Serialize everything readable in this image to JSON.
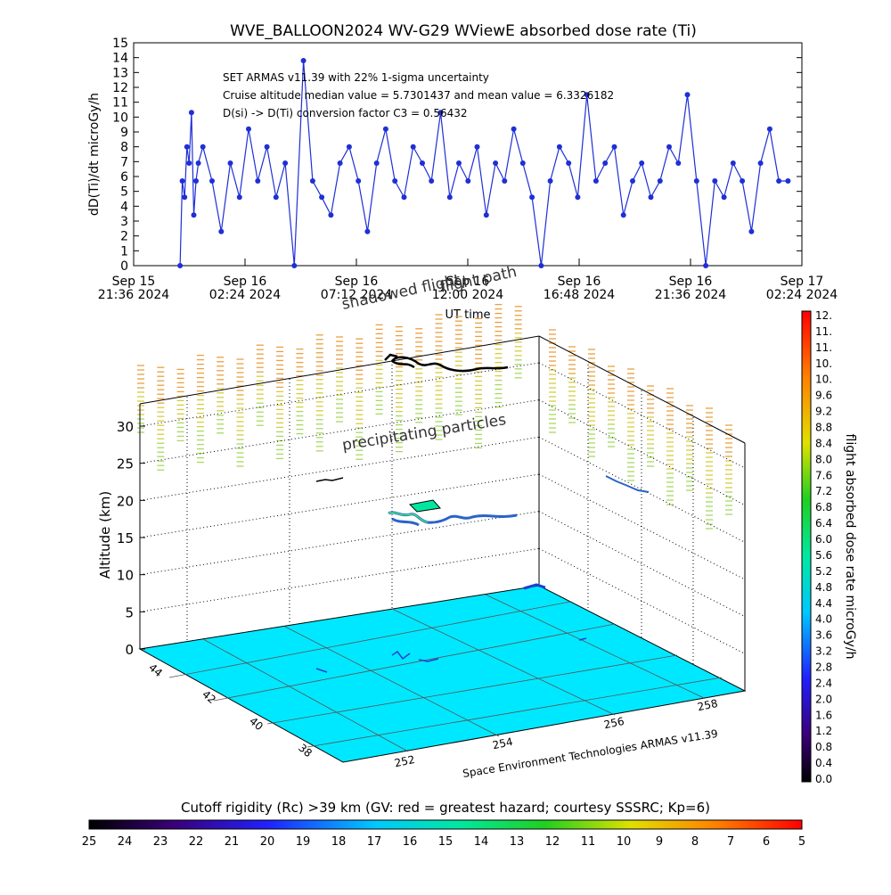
{
  "chart_data": [
    {
      "type": "line",
      "title": "WVE_BALLOON2024 WV-G29 WViewE absorbed dose rate (Ti)",
      "ylabel": "dD(Ti)/dt microGy/h",
      "xlabel": "UT time",
      "ylim": [
        0,
        15
      ],
      "y_ticks": [
        "0",
        "1",
        "2",
        "3",
        "4",
        "5",
        "6",
        "7",
        "8",
        "9",
        "10",
        "11",
        "12",
        "13",
        "14",
        "15"
      ],
      "x_ticks": [
        {
          "line1": "Sep 15",
          "line2": "21:36 2024"
        },
        {
          "line1": "Sep 16",
          "line2": "02:24 2024"
        },
        {
          "line1": "Sep 16",
          "line2": "07:12 2024"
        },
        {
          "line1": "Sep 16",
          "line2": "12:00 2024"
        },
        {
          "line1": "Sep 16",
          "line2": "16:48 2024"
        },
        {
          "line1": "Sep 16",
          "line2": "21:36 2024"
        },
        {
          "line1": "Sep 17",
          "line2": "02:24 2024"
        }
      ],
      "annotations": [
        "SET ARMAS v11.39 with 22% 1-sigma uncertainty",
        "Cruise altitude median value = 5.7301437 and mean value = 6.3326182",
        "D(si) -> D(Ti) conversion factor C3 = 0.56432"
      ],
      "overlay_labels": [
        "shadowed flight",
        "flight path"
      ],
      "series": [
        {
          "color": "#1f2fd6",
          "x_hours": [
            0,
            0.1,
            0.2,
            0.3,
            0.4,
            0.5,
            0.6,
            0.7,
            0.8,
            1.0,
            1.4,
            1.8,
            2.2,
            2.6,
            3.0,
            3.4,
            3.8,
            4.2,
            4.6,
            5.0,
            5.4,
            5.8,
            6.2,
            6.6,
            7.0,
            7.4,
            7.8,
            8.2,
            8.6,
            9.0,
            9.4,
            9.8,
            10.2,
            10.6,
            11.0,
            11.4,
            11.8,
            12.2,
            12.6,
            13.0,
            13.4,
            13.8,
            14.2,
            14.6,
            15.0,
            15.4,
            15.8,
            16.2,
            16.6,
            17.0,
            17.4,
            17.8,
            18.2,
            18.6,
            19.0,
            19.4,
            19.8,
            20.2,
            20.6,
            21.0,
            21.4,
            21.8,
            22.2,
            22.6,
            23.0,
            23.4,
            23.8,
            24.2,
            24.6,
            25.0,
            25.4,
            25.8,
            26.2,
            26.6
          ],
          "values": [
            0,
            5.7,
            4.6,
            8.0,
            6.9,
            10.3,
            3.4,
            5.7,
            6.9,
            8.0,
            5.7,
            2.3,
            6.9,
            4.6,
            9.2,
            5.7,
            8.0,
            4.6,
            6.9,
            0,
            13.8,
            5.7,
            4.6,
            3.4,
            6.9,
            8.0,
            5.7,
            2.3,
            6.9,
            9.2,
            5.7,
            4.6,
            8.0,
            6.9,
            5.7,
            10.3,
            4.6,
            6.9,
            5.7,
            8.0,
            3.4,
            6.9,
            5.7,
            9.2,
            6.9,
            4.6,
            0.0,
            5.7,
            8.0,
            6.9,
            4.6,
            11.5,
            5.7,
            6.9,
            8.0,
            3.4,
            5.7,
            6.9,
            4.6,
            5.7,
            8.0,
            6.9,
            11.5,
            5.7,
            0.0,
            5.7,
            4.6,
            6.9,
            5.7,
            2.3,
            6.9,
            9.2,
            5.7,
            5.7
          ]
        }
      ]
    },
    {
      "type": "scatter",
      "zlabel": "Altitude (km)",
      "z_ticks": [
        "0",
        "5",
        "10",
        "15",
        "20",
        "25",
        "30"
      ],
      "lat_ticks": [
        "44",
        "42",
        "40",
        "38"
      ],
      "lon_ticks": [
        "252",
        "254",
        "256",
        "258"
      ],
      "text_label": "precipitating particles",
      "credit": "Space Environment Technologies ARMAS v11.39",
      "ground_color": "#00e8ff"
    },
    {
      "type": "heatmap",
      "colorbar_label": "flight absorbed dose rate microGy/h",
      "ticks": [
        "12.",
        "11.",
        "11.",
        "10.",
        "10.",
        "9.6",
        "9.2",
        "8.8",
        "8.4",
        "8.0",
        "7.6",
        "7.2",
        "6.8",
        "6.4",
        "6.0",
        "5.6",
        "5.2",
        "4.8",
        "4.4",
        "4.0",
        "3.6",
        "3.2",
        "2.8",
        "2.4",
        "2.0",
        "1.6",
        "1.2",
        "0.8",
        "0.4",
        "0.0"
      ]
    },
    {
      "type": "heatmap",
      "colorbar_label": "Cutoff rigidity (Rc) >39 km (GV: red = greatest hazard; courtesy SSSRC; Kp=6)",
      "ticks": [
        "25",
        "24",
        "23",
        "22",
        "21",
        "20",
        "19",
        "18",
        "17",
        "16",
        "15",
        "14",
        "13",
        "12",
        "11",
        "10",
        "9",
        "8",
        "7",
        "6",
        "5"
      ]
    }
  ]
}
